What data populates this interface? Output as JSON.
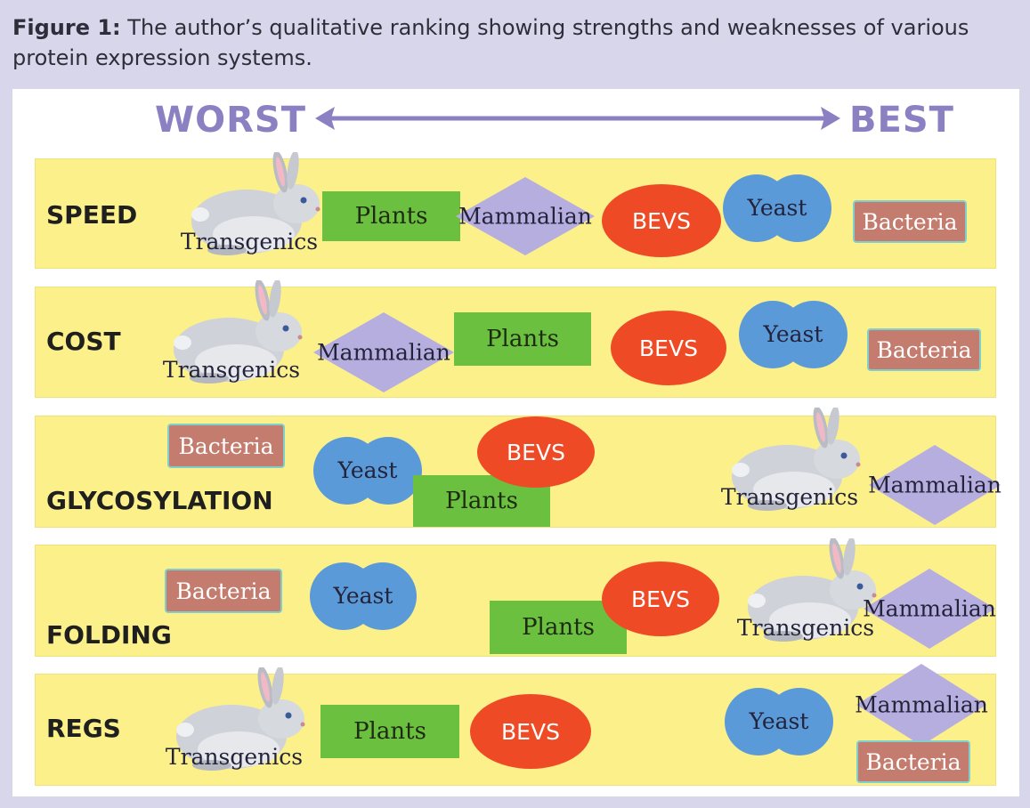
{
  "caption": {
    "figure_label": "Figure 1:",
    "text": "The author’s qualitative ranking showing strengths and weaknesses of various protein expression systems."
  },
  "axis": {
    "left_label": "WORST",
    "right_label": "BEST"
  },
  "colors": {
    "band": "#fbf08a",
    "plants": "#6cc03f",
    "mammalian": "#b7aee0",
    "bevs": "#ef4a26",
    "yeast": "#5b9ad8",
    "bacteria": "#c47c6e",
    "axis": "#8a80c2"
  },
  "rows": [
    {
      "category": "SPEED",
      "order_worst_to_best": [
        "Transgenics",
        "Plants",
        "Mammalian",
        "BEVS",
        "Yeast",
        "Bacteria"
      ],
      "labels": {
        "transgenics": "Transgenics",
        "plants": "Plants",
        "mammalian": "Mammalian",
        "bevs": "BEVS",
        "yeast": "Yeast",
        "bacteria": "Bacteria"
      }
    },
    {
      "category": "COST",
      "order_worst_to_best": [
        "Transgenics",
        "Mammalian",
        "Plants",
        "BEVS",
        "Yeast",
        "Bacteria"
      ],
      "labels": {
        "transgenics": "Transgenics",
        "plants": "Plants",
        "mammalian": "Mammalian",
        "bevs": "BEVS",
        "yeast": "Yeast",
        "bacteria": "Bacteria"
      }
    },
    {
      "category": "GLYCOSYLATION",
      "order_worst_to_best": [
        "Bacteria",
        "Yeast",
        "Plants",
        "BEVS",
        "Transgenics",
        "Mammalian"
      ],
      "labels": {
        "transgenics": "Transgenics",
        "plants": "Plants",
        "mammalian": "Mammalian",
        "bevs": "BEVS",
        "yeast": "Yeast",
        "bacteria": "Bacteria"
      }
    },
    {
      "category": "FOLDING",
      "order_worst_to_best": [
        "Bacteria",
        "Yeast",
        "Plants",
        "BEVS",
        "Transgenics",
        "Mammalian"
      ],
      "labels": {
        "transgenics": "Transgenics",
        "plants": "Plants",
        "mammalian": "Mammalian",
        "bevs": "BEVS",
        "yeast": "Yeast",
        "bacteria": "Bacteria"
      }
    },
    {
      "category": "REGS",
      "order_worst_to_best": [
        "Transgenics",
        "Plants",
        "BEVS",
        "Yeast",
        "Mammalian",
        "Bacteria"
      ],
      "labels": {
        "transgenics": "Transgenics",
        "plants": "Plants",
        "mammalian": "Mammalian",
        "bevs": "BEVS",
        "yeast": "Yeast",
        "bacteria": "Bacteria"
      }
    }
  ]
}
